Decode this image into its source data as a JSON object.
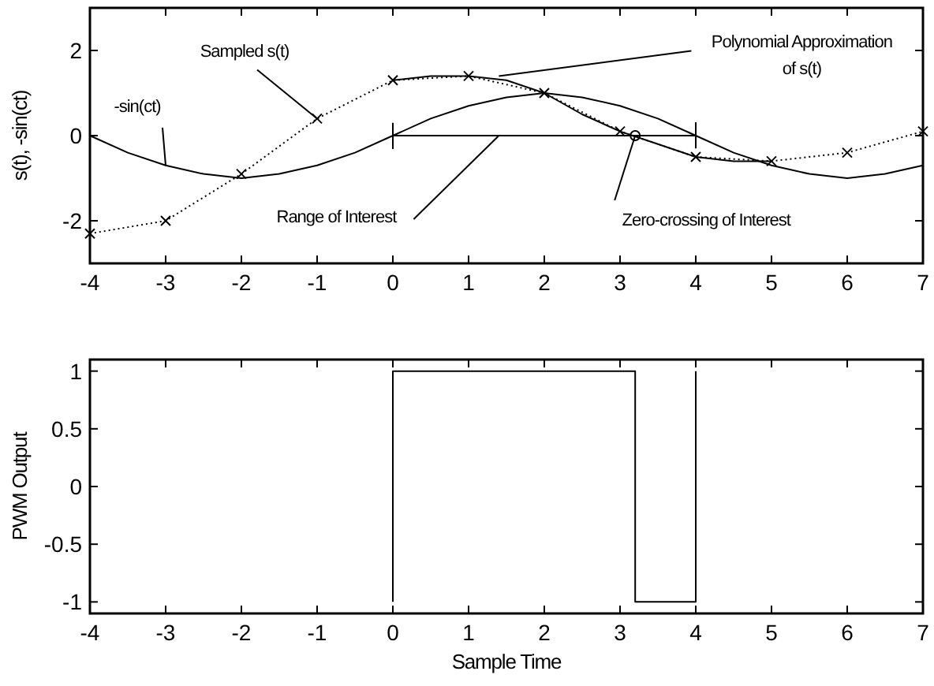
{
  "chart_data": [
    {
      "type": "line",
      "ylabel": "s(t), -sin(ct)",
      "xlim": [
        -4,
        7
      ],
      "xticks": [
        -4,
        -3,
        -2,
        -1,
        0,
        1,
        2,
        3,
        4,
        5,
        6,
        7
      ],
      "ylim": [
        -3,
        3
      ],
      "yticks": [
        -2,
        0,
        2
      ],
      "grid": false,
      "series": [
        {
          "type": "line",
          "color": "#000000",
          "line_style": "solid",
          "marker": "none",
          "x": [
            -4,
            -3.5,
            -3,
            -2.5,
            -2,
            -1.5,
            -1,
            -0.5,
            0,
            0.5,
            1,
            1.5,
            2,
            2.5,
            3,
            3.5,
            4,
            4.5,
            5,
            5.5,
            6,
            6.5,
            7
          ],
          "values": [
            0,
            -0.4,
            -0.7,
            -0.9,
            -1,
            -0.9,
            -0.7,
            -0.4,
            0,
            0.4,
            0.7,
            0.9,
            1,
            0.9,
            0.7,
            0.4,
            0,
            -0.4,
            -0.7,
            -0.9,
            -1,
            -0.9,
            -0.7
          ]
        },
        {
          "type": "line",
          "color": "#000000",
          "line_style": "dotted",
          "marker": "cross",
          "x": [
            -4,
            -3,
            -2,
            -1,
            0,
            1,
            2,
            3,
            4,
            5,
            6,
            7
          ],
          "values": [
            -2.3,
            -2,
            -0.9,
            0.4,
            1.3,
            1.4,
            1,
            0.1,
            -0.5,
            -0.6,
            -0.4,
            0.1
          ]
        },
        {
          "type": "line",
          "color": "#000000",
          "line_style": "solid",
          "marker": "none",
          "x": [
            0,
            0.5,
            1,
            1.5,
            2,
            2.5,
            3,
            3.5,
            4,
            4.5,
            5
          ],
          "values": [
            1.3,
            1.4,
            1.4,
            1.3,
            1,
            0.5,
            0.1,
            -0.2,
            -0.5,
            -0.6,
            -0.6
          ]
        },
        {
          "type": "line",
          "color": "#000000",
          "line_style": "solid",
          "marker": "none",
          "x": [
            0,
            0,
            0,
            4,
            4,
            4
          ],
          "values": [
            0.3,
            -0.3,
            0,
            0,
            0.3,
            -0.3
          ]
        },
        {
          "type": "scatter",
          "color": "#000000",
          "marker": "circle",
          "x": [
            3.2
          ],
          "values": [
            0
          ]
        }
      ],
      "annotations": [
        {
          "text": "Sampled s(t)",
          "x": -1,
          "y": 0.4
        },
        {
          "text": "-sin(ct)",
          "x": -3,
          "y": -0.7
        },
        {
          "text": "Polynomial Approximation\nof s(t)",
          "x": 1.4,
          "y": 1.4
        },
        {
          "text": "Range of Interest",
          "x": 1.4,
          "y": 0
        },
        {
          "text": "Zero-crossing of Interest",
          "x": 3.2,
          "y": 0
        }
      ]
    },
    {
      "type": "line",
      "xlabel": "Sample Time",
      "ylabel": "PWM Output",
      "xlim": [
        -4,
        7
      ],
      "xticks": [
        -4,
        -3,
        -2,
        -1,
        0,
        1,
        2,
        3,
        4,
        5,
        6,
        7
      ],
      "ylim": [
        -1.1,
        1.1
      ],
      "yticks": [
        -1,
        -0.5,
        0,
        0.5,
        1
      ],
      "grid": false,
      "series": [
        {
          "type": "line",
          "color": "#000000",
          "line_style": "solid",
          "marker": "none",
          "x": [
            0,
            0,
            3.2,
            3.2,
            4,
            4
          ],
          "values": [
            -1,
            1,
            1,
            -1,
            -1,
            1
          ]
        }
      ]
    }
  ]
}
